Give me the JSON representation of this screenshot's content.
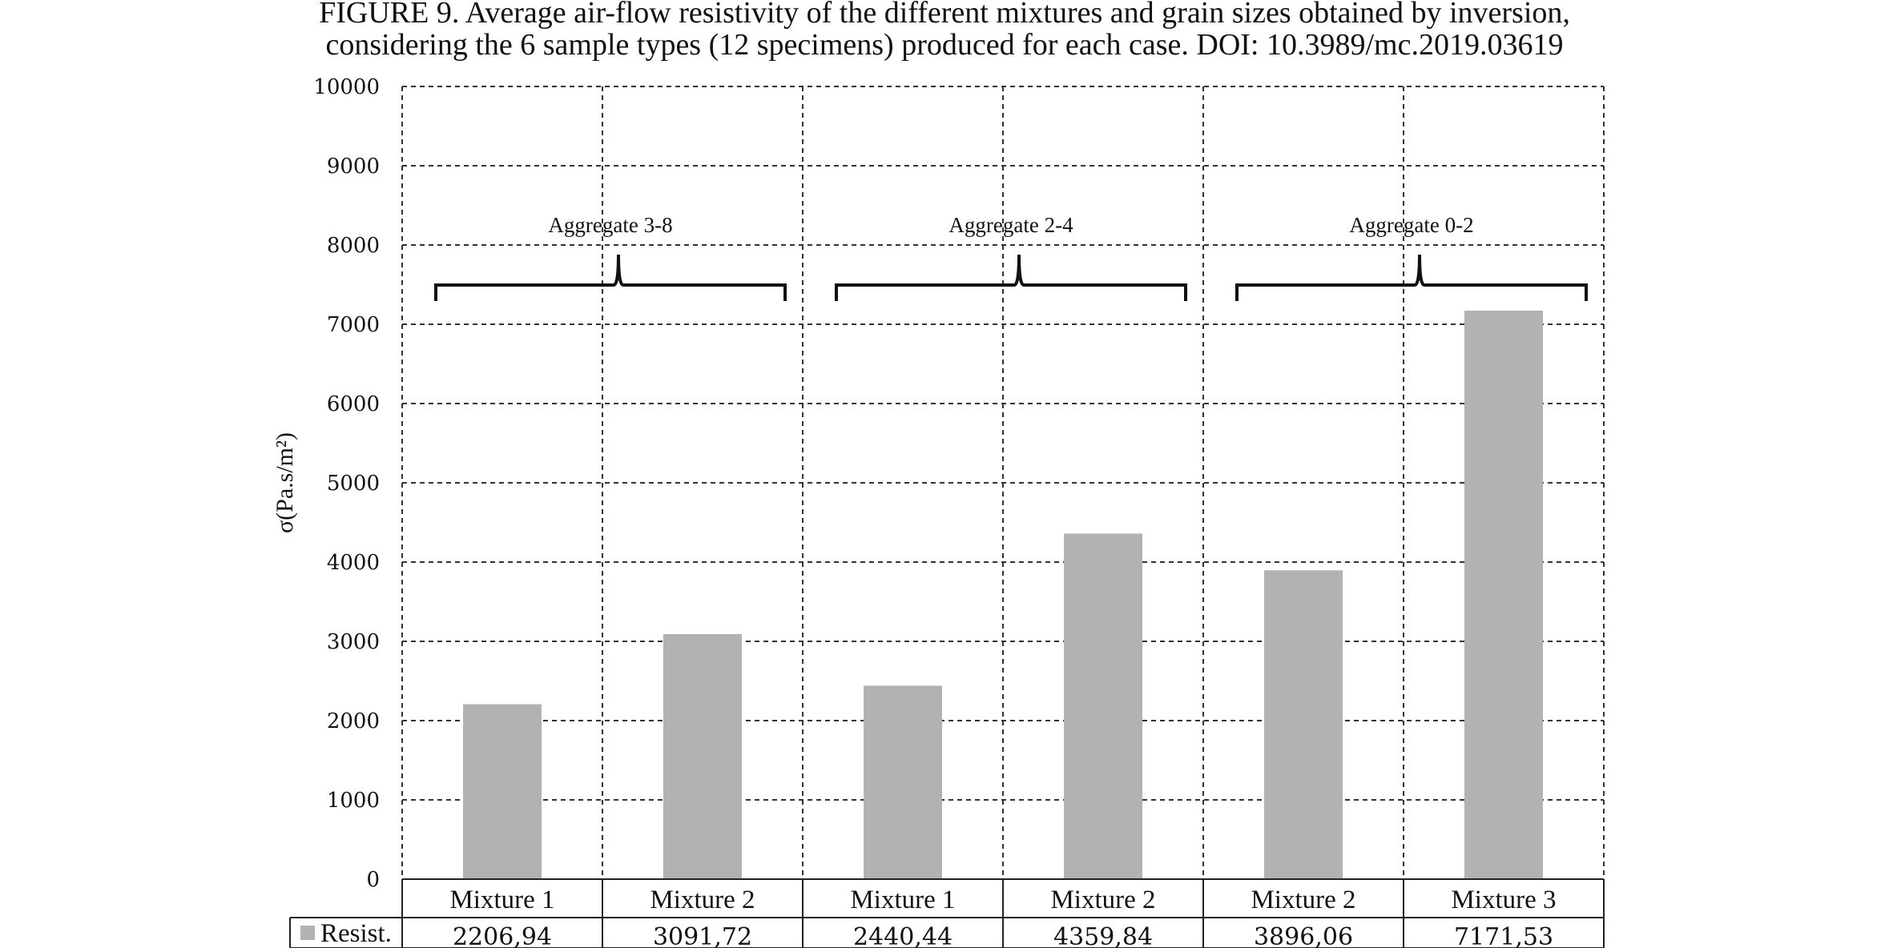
{
  "caption": {
    "line1": "FIGURE 9. Average air-flow resistivity of the different mixtures and grain sizes obtained by inversion,",
    "line2": "considering the 6 sample types (12 specimens) produced for each case. DOI: 10.3989/mc.2019.03619"
  },
  "chart_data": {
    "type": "bar",
    "categories": [
      "Mixture 1",
      "Mixture 2",
      "Mixture 1",
      "Mixture 2",
      "Mixture 2",
      "Mixture 3"
    ],
    "series": [
      {
        "name": "Resist.",
        "values": [
          2206.94,
          3091.72,
          2440.44,
          4359.84,
          3896.06,
          7171.53
        ],
        "value_labels": [
          "2206,94",
          "3091,72",
          "2440,44",
          "4359,84",
          "3896,06",
          "7171,53"
        ],
        "color": "#b2b2b2"
      }
    ],
    "groups": [
      {
        "label": "Aggregate 3-8",
        "categories": [
          0,
          1
        ]
      },
      {
        "label": "Aggregate 2-4",
        "categories": [
          2,
          3
        ]
      },
      {
        "label": "Aggregate 0-2",
        "categories": [
          4,
          5
        ]
      }
    ],
    "ylabel": "σ(Pa.s/m²)",
    "ylim": [
      0,
      10000
    ],
    "yticks": [
      0,
      1000,
      2000,
      3000,
      4000,
      5000,
      6000,
      7000,
      8000,
      9000,
      10000
    ],
    "grid": true,
    "legend_placement": "data-table"
  }
}
